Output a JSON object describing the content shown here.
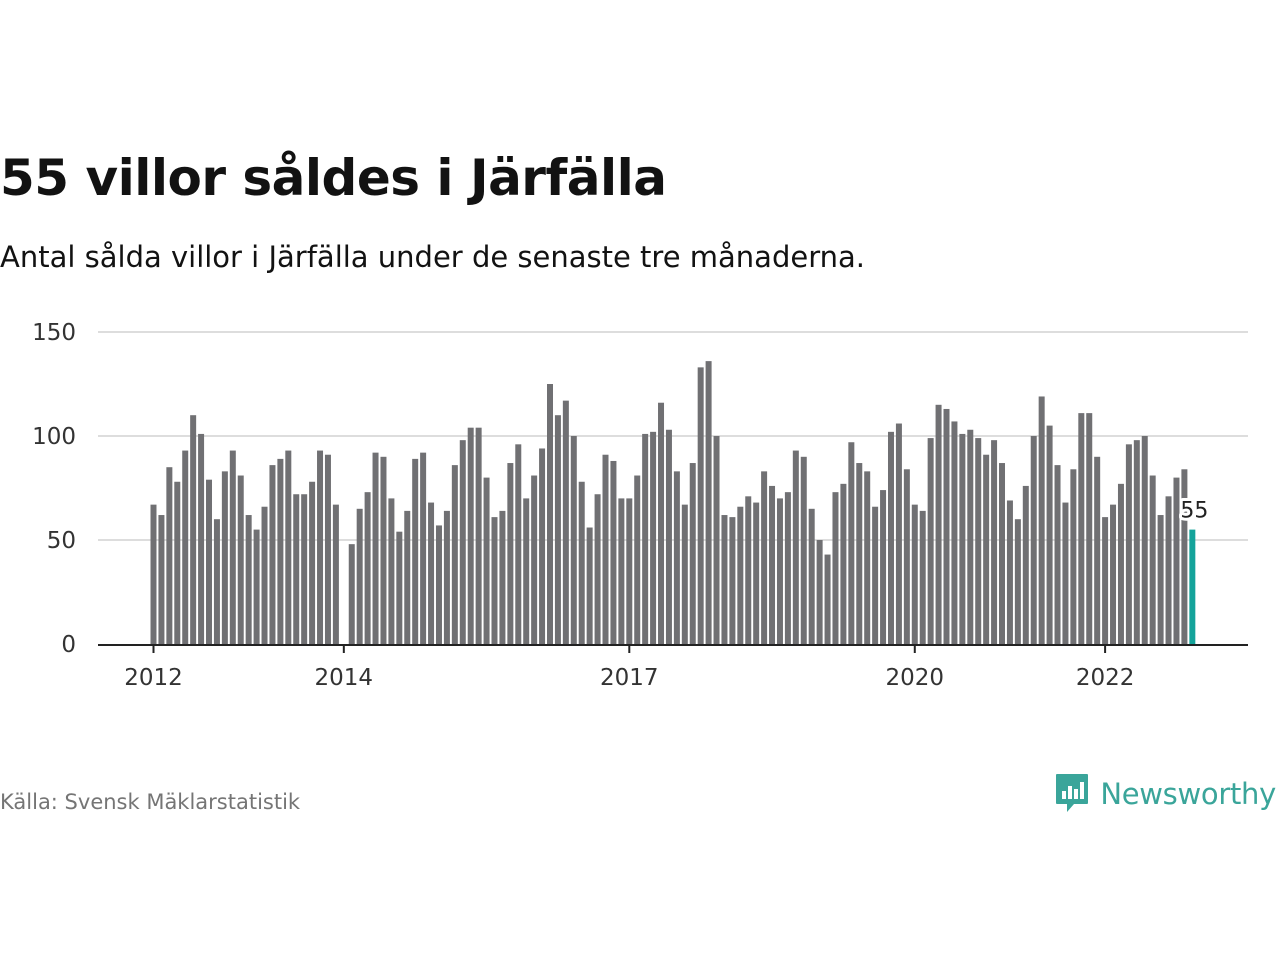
{
  "chart_data": {
    "type": "bar",
    "title": "55 villor såldes i Järfälla",
    "subtitle": "Antal sålda villor i Järfälla under de senaste tre månaderna.",
    "xlabel": "",
    "ylabel": "",
    "ylim": [
      0,
      150
    ],
    "y_ticks": [
      0,
      50,
      100,
      150
    ],
    "x_ticks": [
      {
        "label": "2012",
        "index": 0
      },
      {
        "label": "2014",
        "index": 24
      },
      {
        "label": "2017",
        "index": 60
      },
      {
        "label": "2020",
        "index": 96
      },
      {
        "label": "2022",
        "index": 120
      }
    ],
    "grid": "horizontal",
    "bar_color": "#707073",
    "highlight_color": "#14a39a",
    "highlight_index": 131,
    "highlight_label": "55",
    "categories": [
      "2012-01",
      "2012-02",
      "2012-03",
      "2012-04",
      "2012-05",
      "2012-06",
      "2012-07",
      "2012-08",
      "2012-09",
      "2012-10",
      "2012-11",
      "2012-12",
      "2013-01",
      "2013-02",
      "2013-03",
      "2013-04",
      "2013-05",
      "2013-06",
      "2013-07",
      "2013-08",
      "2013-09",
      "2013-10",
      "2013-11",
      "2013-12",
      "2014-01",
      "2014-02",
      "2014-03",
      "2014-04",
      "2014-05",
      "2014-06",
      "2014-07",
      "2014-08",
      "2014-09",
      "2014-10",
      "2014-11",
      "2014-12",
      "2015-01",
      "2015-02",
      "2015-03",
      "2015-04",
      "2015-05",
      "2015-06",
      "2015-07",
      "2015-08",
      "2015-09",
      "2015-10",
      "2015-11",
      "2015-12",
      "2016-01",
      "2016-02",
      "2016-03",
      "2016-04",
      "2016-05",
      "2016-06",
      "2016-07",
      "2016-08",
      "2016-09",
      "2016-10",
      "2016-11",
      "2016-12",
      "2017-01",
      "2017-02",
      "2017-03",
      "2017-04",
      "2017-05",
      "2017-06",
      "2017-07",
      "2017-08",
      "2017-09",
      "2017-10",
      "2017-11",
      "2017-12",
      "2018-01",
      "2018-02",
      "2018-03",
      "2018-04",
      "2018-05",
      "2018-06",
      "2018-07",
      "2018-08",
      "2018-09",
      "2018-10",
      "2018-11",
      "2018-12",
      "2019-01",
      "2019-02",
      "2019-03",
      "2019-04",
      "2019-05",
      "2019-06",
      "2019-07",
      "2019-08",
      "2019-09",
      "2019-10",
      "2019-11",
      "2019-12",
      "2020-01",
      "2020-02",
      "2020-03",
      "2020-04",
      "2020-05",
      "2020-06",
      "2020-07",
      "2020-08",
      "2020-09",
      "2020-10",
      "2020-11",
      "2020-12",
      "2021-01",
      "2021-02",
      "2021-03",
      "2021-04",
      "2021-05",
      "2021-06",
      "2021-07",
      "2021-08",
      "2021-09",
      "2021-10",
      "2021-11",
      "2021-12",
      "2022-01",
      "2022-02",
      "2022-03",
      "2022-04",
      "2022-05",
      "2022-06",
      "2022-07",
      "2022-08",
      "2022-09",
      "2022-10",
      "2022-11",
      "2022-12"
    ],
    "values": [
      67,
      62,
      85,
      78,
      93,
      110,
      101,
      79,
      60,
      83,
      93,
      81,
      62,
      55,
      66,
      86,
      89,
      93,
      72,
      72,
      78,
      93,
      91,
      67,
      0,
      48,
      65,
      73,
      92,
      90,
      70,
      54,
      64,
      89,
      92,
      68,
      57,
      64,
      86,
      98,
      104,
      104,
      80,
      61,
      64,
      87,
      96,
      70,
      81,
      94,
      125,
      110,
      117,
      100,
      78,
      56,
      72,
      91,
      88,
      70,
      70,
      81,
      101,
      102,
      116,
      103,
      83,
      67,
      87,
      133,
      136,
      100,
      62,
      61,
      66,
      71,
      68,
      83,
      76,
      70,
      73,
      93,
      90,
      65,
      50,
      43,
      73,
      77,
      97,
      87,
      83,
      66,
      74,
      102,
      106,
      84,
      67,
      64,
      99,
      115,
      113,
      107,
      101,
      103,
      99,
      91,
      98,
      87,
      69,
      60,
      76,
      100,
      119,
      105,
      86,
      68,
      84,
      111,
      111,
      90,
      61,
      67,
      77,
      96,
      98,
      100,
      81,
      62,
      71,
      80,
      84,
      55
    ]
  },
  "source": "Källa: Svensk Mäklarstatistik",
  "brand": {
    "name": "Newsworthy",
    "icon": "newsworthy-logo-icon",
    "color": "#3aa59a"
  }
}
